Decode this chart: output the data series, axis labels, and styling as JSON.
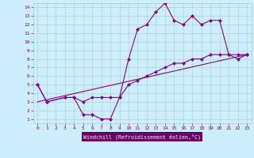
{
  "xlabel": "Windchill (Refroidissement éolien,°C)",
  "bg_color": "#cceeff",
  "line_color": "#880088",
  "grid_color": "#aacccc",
  "axis_bg": "#cceeff",
  "xlim": [
    -0.5,
    23.5
  ],
  "ylim": [
    0.5,
    14.5
  ],
  "xticks": [
    0,
    1,
    2,
    3,
    4,
    5,
    6,
    7,
    8,
    9,
    10,
    11,
    12,
    13,
    14,
    15,
    16,
    17,
    18,
    19,
    20,
    21,
    22,
    23
  ],
  "yticks": [
    1,
    2,
    3,
    4,
    5,
    6,
    7,
    8,
    9,
    10,
    11,
    12,
    13,
    14
  ],
  "line1_x": [
    0,
    1,
    3,
    4,
    5,
    6,
    7,
    8,
    9,
    10,
    11,
    12,
    13,
    14,
    15,
    16,
    17,
    18,
    19,
    20,
    21,
    22,
    23
  ],
  "line1_y": [
    5.0,
    3.0,
    3.5,
    3.5,
    1.5,
    1.5,
    1.0,
    1.0,
    3.5,
    8.0,
    11.5,
    12.0,
    13.5,
    14.5,
    12.5,
    12.0,
    13.0,
    12.0,
    12.5,
    12.5,
    8.5,
    8.0,
    8.5
  ],
  "line2_x": [
    0,
    1,
    3,
    4,
    5,
    6,
    7,
    8,
    9,
    10,
    11,
    12,
    13,
    14,
    15,
    16,
    17,
    18,
    19,
    20,
    21,
    22,
    23
  ],
  "line2_y": [
    5.0,
    3.0,
    3.5,
    3.5,
    3.0,
    3.5,
    3.5,
    3.5,
    3.5,
    5.0,
    5.5,
    6.0,
    6.5,
    7.0,
    7.5,
    7.5,
    8.0,
    8.0,
    8.5,
    8.5,
    8.5,
    8.5,
    8.5
  ],
  "line3_x": [
    0,
    23
  ],
  "line3_y": [
    3.0,
    8.5
  ],
  "markersize": 2.5,
  "linewidth": 0.8,
  "xlabel_bg": "#660066",
  "xlabel_color": "#ffffff",
  "ylabel_color": "#880088",
  "tick_label_color": "#880088"
}
